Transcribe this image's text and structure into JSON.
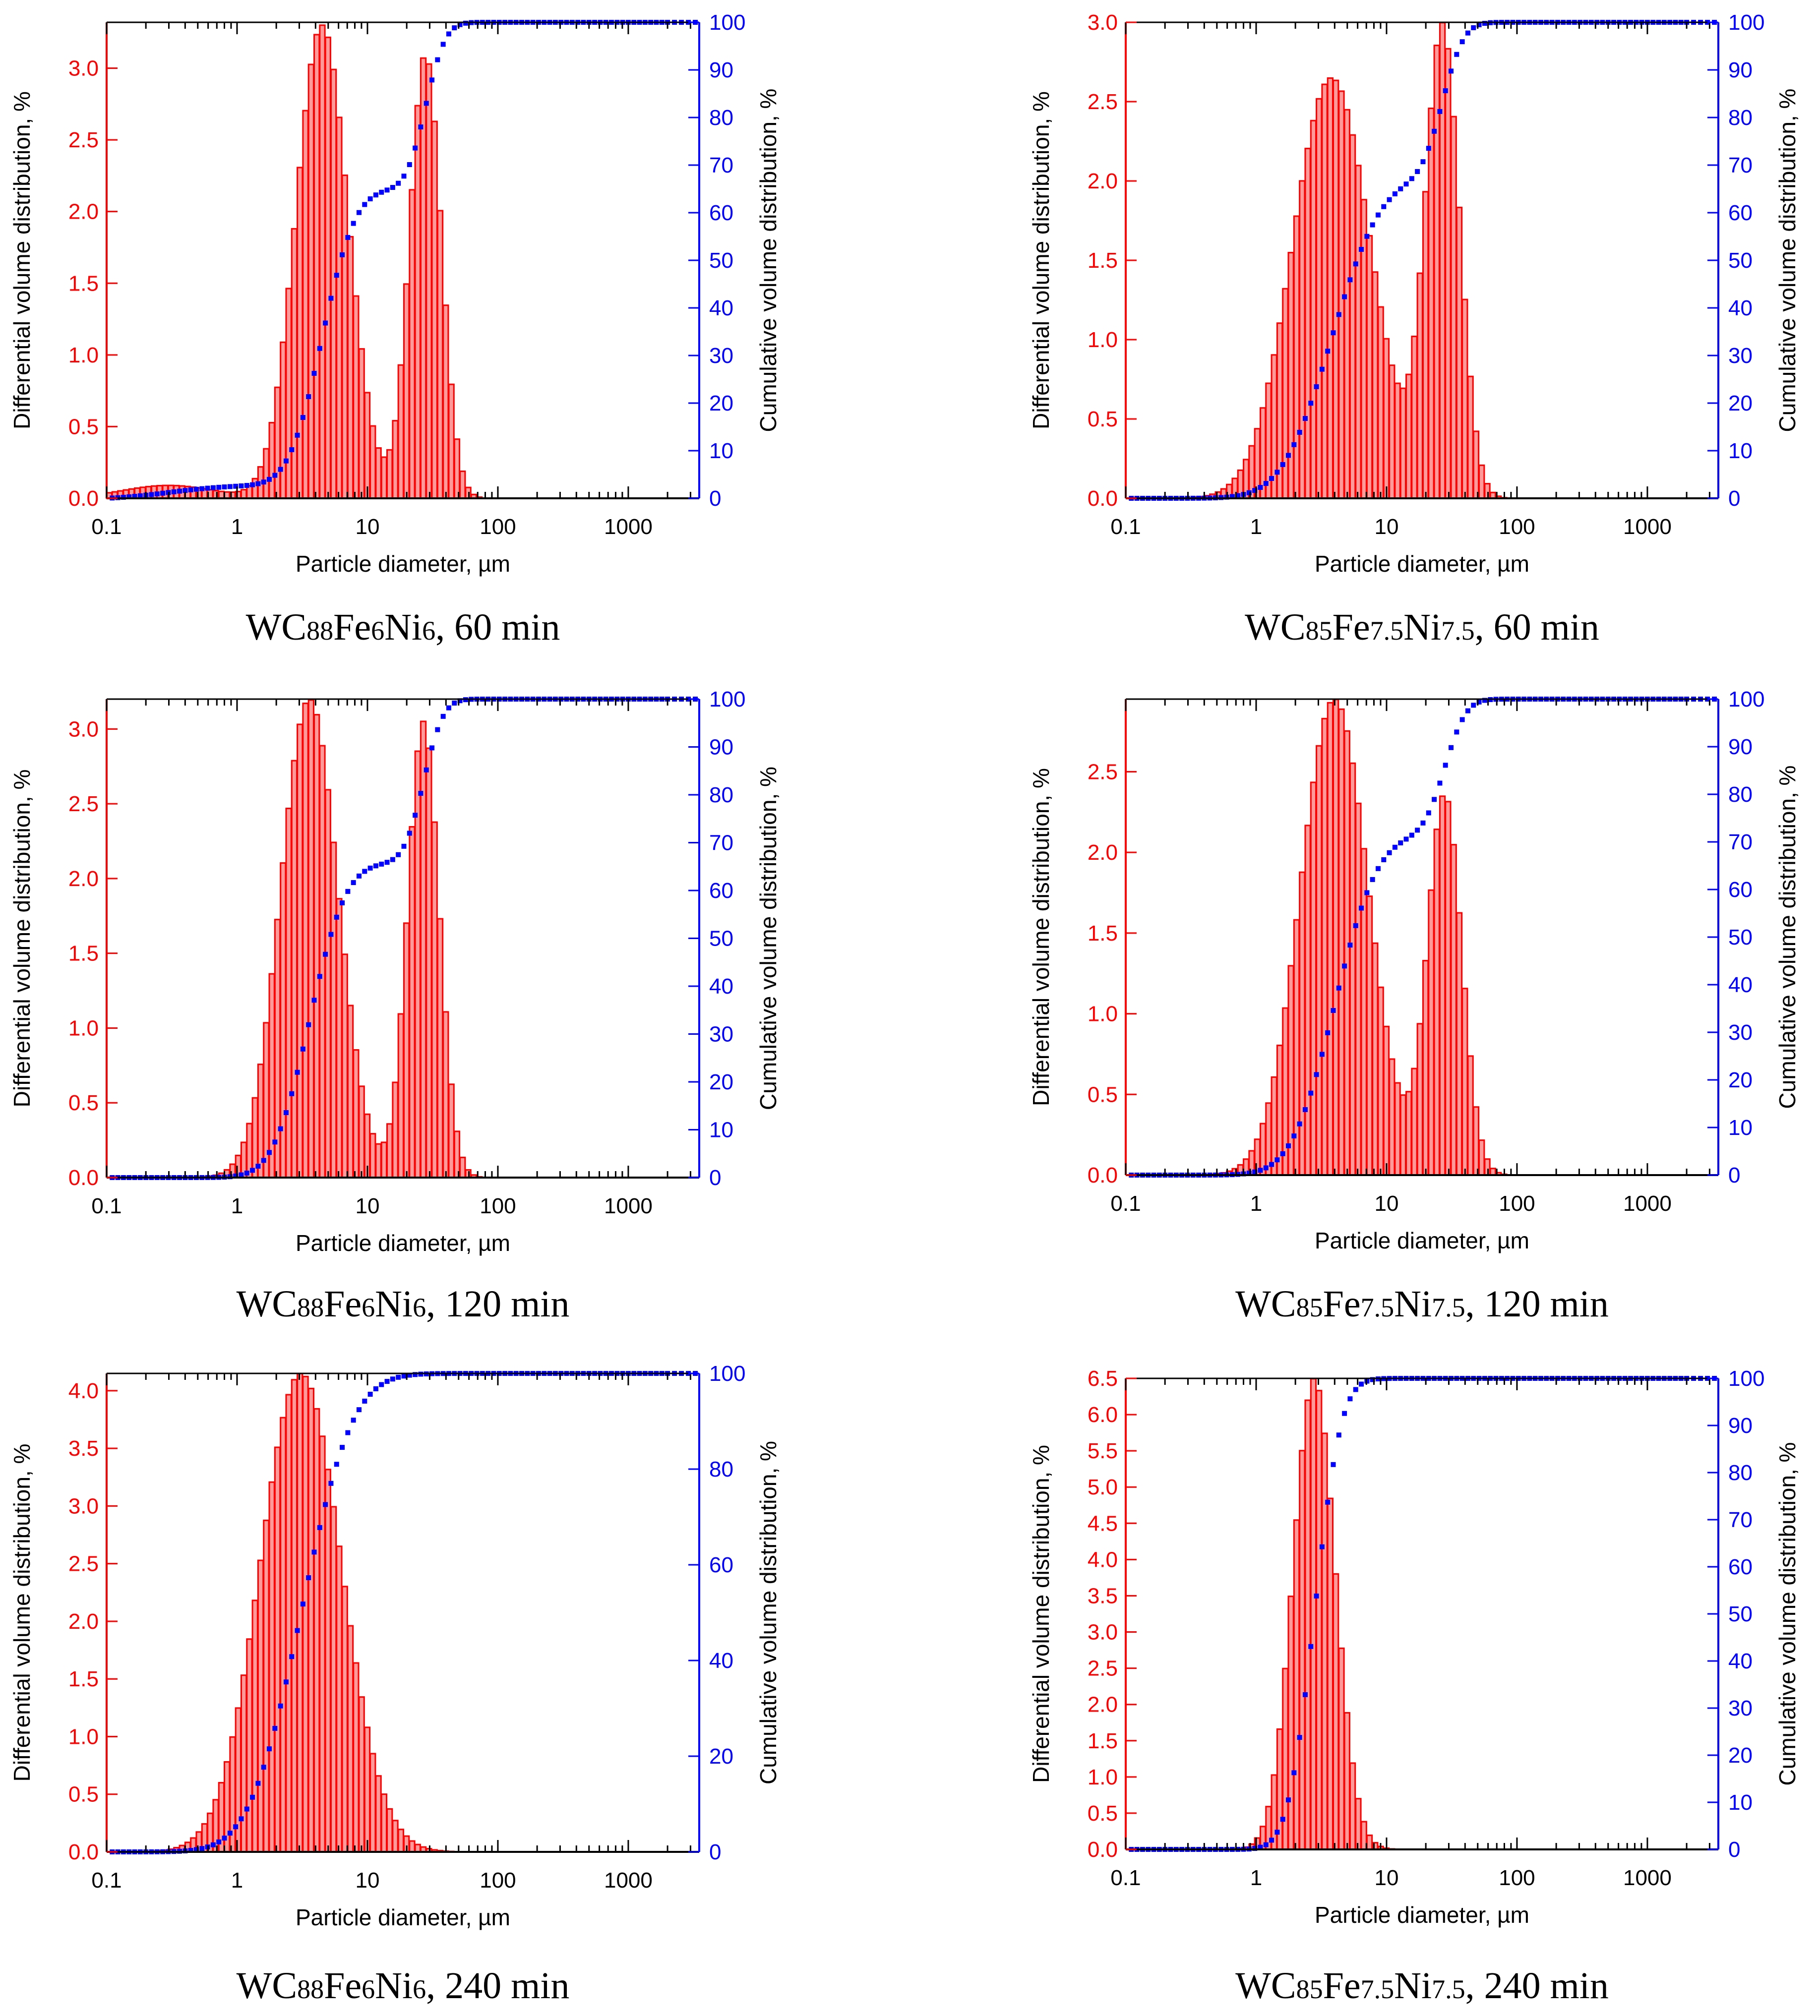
{
  "figure": {
    "colors": {
      "differential": "#ff0000",
      "differential_fill": "#ff9a9a",
      "cumulative": "#0000ff",
      "axis": "#000000"
    }
  },
  "chart_data": [
    {
      "type": "bar",
      "subtype": "histogram_with_cumulative_line",
      "caption": {
        "prefix": "WC",
        "s1": "88",
        "fe": "Fe",
        "s2": "6",
        "ni": "Ni",
        "s3": "6",
        "suffix": ", 60 min"
      },
      "xlabel": "Particle diameter, µm",
      "ylabel_left": "Differential volume distribution, %",
      "ylabel_right": "Cumulative volume distribution, %",
      "xscale": "log",
      "xlim": [
        0.1,
        3500
      ],
      "xticks": [
        "0.1",
        "1",
        "10",
        "100",
        "1000"
      ],
      "ylim_left": [
        0,
        3.32
      ],
      "yticks_left": [
        "0.0",
        "0.5",
        "1.0",
        "1.5",
        "2.0",
        "2.5",
        "3.0"
      ],
      "ylim_right": [
        0,
        100
      ],
      "yticks_right": [
        "0",
        "10",
        "20",
        "30",
        "40",
        "50",
        "60",
        "70",
        "80",
        "90",
        "100"
      ],
      "differential_peaks": [
        {
          "center_um": 0.3,
          "height": 0.09,
          "width_log": 0.35
        },
        {
          "center_um": 4.5,
          "height": 3.3,
          "width_log": 0.2
        },
        {
          "center_um": 28,
          "height": 3.1,
          "width_log": 0.12
        }
      ],
      "series": [
        {
          "name": "Differential volume distribution, %",
          "axis": "left",
          "style": "bars"
        },
        {
          "name": "Cumulative volume distribution, %",
          "axis": "right",
          "style": "markers"
        }
      ]
    },
    {
      "type": "bar",
      "subtype": "histogram_with_cumulative_line",
      "caption": {
        "prefix": "WC",
        "s1": "85",
        "fe": "Fe",
        "s2": "7.5",
        "ni": "Ni",
        "s3": "7.5",
        "suffix": ", 60 min"
      },
      "xlabel": "Particle diameter, µm",
      "ylabel_left": "Differential volume distribution, %",
      "ylabel_right": "Cumulative volume distribution, %",
      "xscale": "log",
      "xlim": [
        0.1,
        3500
      ],
      "xticks": [
        "0.1",
        "1",
        "10",
        "100",
        "1000"
      ],
      "ylim_left": [
        0,
        3.0
      ],
      "yticks_left": [
        "0.0",
        "0.5",
        "1.0",
        "1.5",
        "2.0",
        "2.5",
        "3.0"
      ],
      "ylim_right": [
        0,
        100
      ],
      "yticks_right": [
        "0",
        "10",
        "20",
        "30",
        "40",
        "50",
        "60",
        "70",
        "80",
        "90",
        "100"
      ],
      "differential_peaks": [
        {
          "center_um": 3.8,
          "height": 2.65,
          "width_log": 0.3
        },
        {
          "center_um": 27,
          "height": 2.95,
          "width_log": 0.13
        }
      ],
      "series": [
        {
          "name": "Differential volume distribution, %",
          "axis": "left",
          "style": "bars"
        },
        {
          "name": "Cumulative volume distribution, %",
          "axis": "right",
          "style": "markers"
        }
      ]
    },
    {
      "type": "bar",
      "subtype": "histogram_with_cumulative_line",
      "caption": {
        "prefix": "WC",
        "s1": "88",
        "fe": "Fe",
        "s2": "6",
        "ni": "Ni",
        "s3": "6",
        "suffix": ", 120 min"
      },
      "xlabel": "Particle diameter, µm",
      "ylabel_left": "Differential volume distribution, %",
      "ylabel_right": "Cumulative volume distribution, %",
      "xscale": "log",
      "xlim": [
        0.1,
        3500
      ],
      "xticks": [
        "0.1",
        "1",
        "10",
        "100",
        "1000"
      ],
      "ylim_left": [
        0,
        3.2
      ],
      "yticks_left": [
        "0.0",
        "0.5",
        "1.0",
        "1.5",
        "2.0",
        "2.5",
        "3.0"
      ],
      "ylim_right": [
        0,
        100
      ],
      "yticks_right": [
        "0",
        "10",
        "20",
        "30",
        "40",
        "50",
        "60",
        "70",
        "80",
        "90",
        "100"
      ],
      "differential_peaks": [
        {
          "center_um": 3.6,
          "height": 3.2,
          "width_log": 0.22
        },
        {
          "center_um": 27,
          "height": 3.05,
          "width_log": 0.12
        }
      ],
      "series": [
        {
          "name": "Differential volume distribution, %",
          "axis": "left",
          "style": "bars"
        },
        {
          "name": "Cumulative volume distribution, %",
          "axis": "right",
          "style": "markers"
        }
      ]
    },
    {
      "type": "bar",
      "subtype": "histogram_with_cumulative_line",
      "caption": {
        "prefix": "WC",
        "s1": "85",
        "fe": "Fe",
        "s2": "7.5",
        "ni": "Ni",
        "s3": "7.5",
        "suffix": ", 120 min"
      },
      "xlabel": "Particle diameter, µm",
      "ylabel_left": "Differential volume distribution, %",
      "ylabel_right": "Cumulative volume distribution, %",
      "xscale": "log",
      "xlim": [
        0.1,
        3500
      ],
      "xticks": [
        "0.1",
        "1",
        "10",
        "100",
        "1000"
      ],
      "ylim_left": [
        0,
        2.95
      ],
      "yticks_left": [
        "0.0",
        "0.5",
        "1.0",
        "1.5",
        "2.0",
        "2.5"
      ],
      "ylim_right": [
        0,
        100
      ],
      "yticks_right": [
        "0",
        "10",
        "20",
        "30",
        "40",
        "50",
        "60",
        "70",
        "80",
        "90",
        "100"
      ],
      "differential_peaks": [
        {
          "center_um": 4.0,
          "height": 2.95,
          "width_log": 0.26
        },
        {
          "center_um": 28,
          "height": 2.35,
          "width_log": 0.13
        }
      ],
      "series": [
        {
          "name": "Differential volume distribution, %",
          "axis": "left",
          "style": "bars"
        },
        {
          "name": "Cumulative volume distribution, %",
          "axis": "right",
          "style": "markers"
        }
      ]
    },
    {
      "type": "bar",
      "subtype": "histogram_with_cumulative_line",
      "caption": {
        "prefix": "WC",
        "s1": "88",
        "fe": "Fe",
        "s2": "6",
        "ni": "Ni",
        "s3": "6",
        "suffix": ", 240 min"
      },
      "xlabel": "Particle diameter, µm",
      "ylabel_left": "Differential volume distribution, %",
      "ylabel_right": "Cumulative volume distribution, %",
      "xscale": "log",
      "xlim": [
        0.1,
        3500
      ],
      "xticks": [
        "0.1",
        "1",
        "10",
        "100",
        "1000"
      ],
      "ylim_left": [
        0,
        4.15
      ],
      "yticks_left": [
        "0.0",
        "0.5",
        "1.0",
        "1.5",
        "2.0",
        "2.5",
        "3.0",
        "3.5",
        "4.0"
      ],
      "ylim_right": [
        0,
        100
      ],
      "yticks_right": [
        "0",
        "20",
        "40",
        "60",
        "80",
        "100"
      ],
      "differential_peaks": [
        {
          "center_um": 3.1,
          "height": 4.15,
          "width_log": 0.31
        }
      ],
      "series": [
        {
          "name": "Differential volume distribution, %",
          "axis": "left",
          "style": "bars"
        },
        {
          "name": "Cumulative volume distribution, %",
          "axis": "right",
          "style": "markers"
        }
      ]
    },
    {
      "type": "bar",
      "subtype": "histogram_with_cumulative_line",
      "caption": {
        "prefix": "WC",
        "s1": "85",
        "fe": "Fe",
        "s2": "7.5",
        "ni": "Ni",
        "s3": "7.5",
        "suffix": ", 240 min"
      },
      "xlabel": "Particle diameter, µm",
      "ylabel_left": "Differential volume distribution, %",
      "ylabel_right": "Cumulative volume distribution, %",
      "xscale": "log",
      "xlim": [
        0.1,
        3500
      ],
      "xticks": [
        "0.1",
        "1",
        "10",
        "100",
        "1000"
      ],
      "ylim_left": [
        0,
        6.5
      ],
      "yticks_left": [
        "0.0",
        "0.5",
        "1.0",
        "1.5",
        "2.0",
        "2.5",
        "3.0",
        "3.5",
        "4.0",
        "4.5",
        "5.0",
        "5.5",
        "6.0",
        "6.5"
      ],
      "ylim_right": [
        0,
        100
      ],
      "yticks_right": [
        "0",
        "10",
        "20",
        "30",
        "40",
        "50",
        "60",
        "70",
        "80",
        "90",
        "100"
      ],
      "differential_peaks": [
        {
          "center_um": 2.8,
          "height": 6.5,
          "width_log": 0.16
        }
      ],
      "series": [
        {
          "name": "Differential volume distribution, %",
          "axis": "left",
          "style": "bars"
        },
        {
          "name": "Cumulative volume distribution, %",
          "axis": "right",
          "style": "markers"
        }
      ]
    }
  ]
}
